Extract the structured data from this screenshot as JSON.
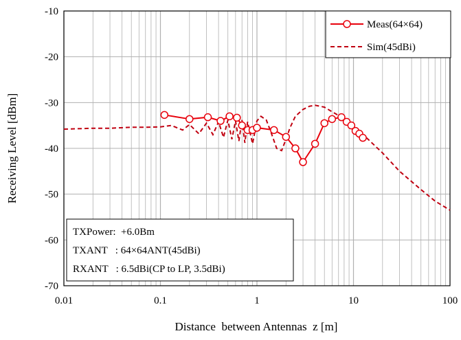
{
  "chart_data": {
    "type": "line",
    "title": "",
    "xlabel": "Distance  between Antennas  z [m]",
    "ylabel": "Receiving Level [dBm]",
    "xscale": "log",
    "xlim": [
      0.01,
      100
    ],
    "ylim": [
      -70,
      -10
    ],
    "x_ticks": [
      "0.01",
      "0.1",
      "1",
      "10",
      "100"
    ],
    "y_ticks": [
      "-10",
      "-20",
      "-30",
      "-40",
      "-50",
      "-60",
      "-70"
    ],
    "grid": true,
    "legend_position": "top-right",
    "colors": {
      "series": "#e8000b",
      "axis": "#000000",
      "grid": "#b0b0b0"
    },
    "series": [
      {
        "name": "Meas(64×64)",
        "style": "solid-line-with-open-circles",
        "x": [
          0.11,
          0.2,
          0.31,
          0.42,
          0.52,
          0.62,
          0.7,
          0.8,
          0.9,
          1.0,
          1.5,
          2.0,
          2.5,
          3.0,
          4.0,
          5.0,
          6.0,
          7.5,
          8.5,
          9.5,
          10.5,
          11.5,
          12.5
        ],
        "y": [
          -32.7,
          -33.6,
          -33.2,
          -34.0,
          -33.0,
          -33.3,
          -35.0,
          -36.0,
          -36.0,
          -35.5,
          -36.0,
          -37.5,
          -40.0,
          -43.0,
          -39.0,
          -34.5,
          -33.6,
          -33.2,
          -34.2,
          -35.0,
          -36.2,
          -36.8,
          -37.7
        ]
      },
      {
        "name": "Sim(45dBi)",
        "style": "dashed-line",
        "x": [
          0.01,
          0.02,
          0.03,
          0.05,
          0.07,
          0.1,
          0.13,
          0.17,
          0.2,
          0.25,
          0.3,
          0.35,
          0.4,
          0.45,
          0.5,
          0.55,
          0.6,
          0.65,
          0.7,
          0.75,
          0.8,
          0.9,
          1.0,
          1.1,
          1.25,
          1.4,
          1.6,
          1.8,
          2.0,
          2.2,
          2.5,
          3.0,
          3.5,
          4.0,
          4.5,
          5.0,
          6.0,
          8.0,
          10.0,
          15.0,
          20.0,
          30.0,
          50.0,
          70.0,
          100.0
        ],
        "y": [
          -35.8,
          -35.6,
          -35.6,
          -35.4,
          -35.4,
          -35.3,
          -35.0,
          -36.0,
          -34.8,
          -36.8,
          -34.5,
          -37.0,
          -34.2,
          -37.6,
          -33.8,
          -38.0,
          -34.0,
          -38.4,
          -33.8,
          -38.8,
          -34.2,
          -39.0,
          -34.0,
          -33.0,
          -33.8,
          -36.5,
          -40.0,
          -40.5,
          -38.0,
          -35.5,
          -33.0,
          -31.5,
          -30.8,
          -30.6,
          -30.8,
          -31.0,
          -32.0,
          -33.5,
          -35.0,
          -38.5,
          -41.0,
          -45.0,
          -49.0,
          -51.5,
          -53.5
        ]
      }
    ]
  },
  "info_box": {
    "lines": [
      "TXPower:  +6.0Bm",
      "TXANT   : 64×64ANT(45dBi)",
      "RXANT   : 6.5dBi(CP to LP, 3.5dBi)"
    ]
  }
}
